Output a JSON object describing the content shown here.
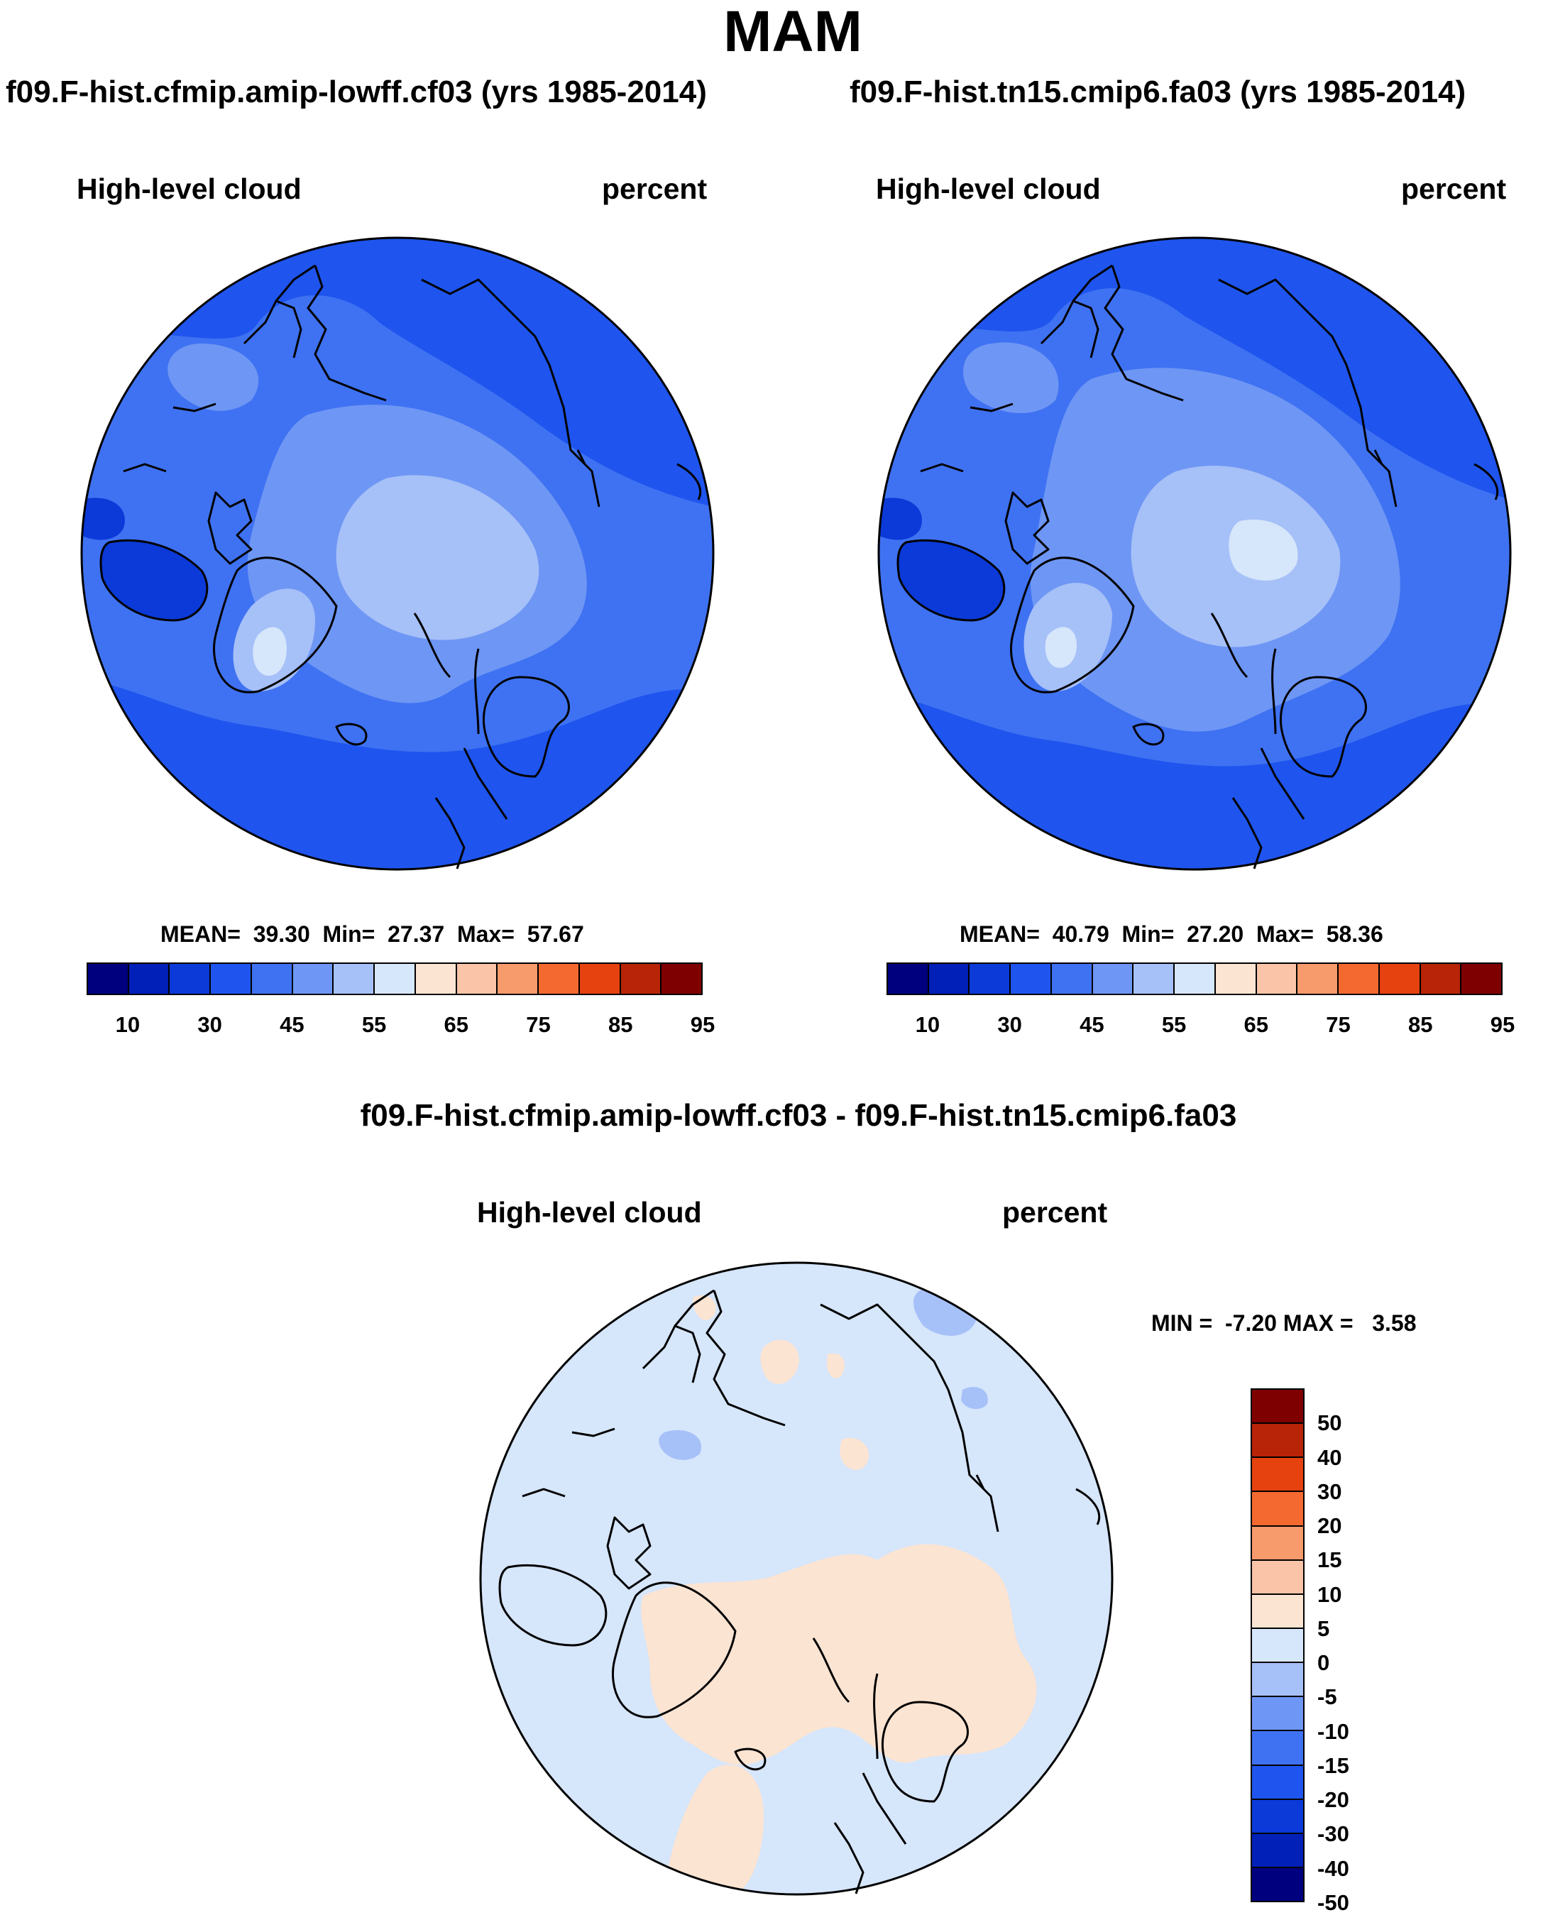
{
  "title": "MAM",
  "panels": [
    {
      "run_title": "f09.F-hist.cfmip.amip-lowff.cf03 (yrs 1985-2014)",
      "variable": "High-level cloud",
      "units": "percent",
      "mean_label": "MEAN=",
      "mean": "39.30",
      "min_label": "Min=",
      "min": "27.37",
      "max_label": "Max=",
      "max": "57.67"
    },
    {
      "run_title": "f09.F-hist.tn15.cmip6.fa03 (yrs 1985-2014)",
      "variable": "High-level cloud",
      "units": "percent",
      "mean_label": "MEAN=",
      "mean": "40.79",
      "min_label": "Min=",
      "min": "27.20",
      "max_label": "Max=",
      "max": "58.36"
    }
  ],
  "abs_colorbar": {
    "colors": [
      "#00007f",
      "#0020b8",
      "#0b3ad8",
      "#1f55ee",
      "#3f72f2",
      "#6e96f4",
      "#a6c0f8",
      "#d6e6fb",
      "#fce4d2",
      "#f9c4a7",
      "#f79a6c",
      "#f4692f",
      "#e5420f",
      "#b82407",
      "#7f0000"
    ],
    "labels": [
      "10",
      "30",
      "45",
      "55",
      "65",
      "75",
      "85",
      "95"
    ]
  },
  "difference": {
    "title": "f09.F-hist.cfmip.amip-lowff.cf03 - f09.F-hist.tn15.cmip6.fa03",
    "variable": "High-level cloud",
    "units": "percent",
    "min_label": "MIN =",
    "min": "-7.20",
    "max_label": "MAX =",
    "max": "3.58",
    "colorbar": {
      "colors": [
        "#7f0000",
        "#b82407",
        "#e5420f",
        "#f4692f",
        "#f79a6c",
        "#f9c4a7",
        "#fce4d2",
        "#d6e6fb",
        "#a6c0f8",
        "#6e96f4",
        "#3f72f2",
        "#1f55ee",
        "#0b3ad8",
        "#0020b8",
        "#00007f"
      ],
      "labels": [
        "50",
        "40",
        "30",
        "20",
        "15",
        "10",
        "5",
        "0",
        "-5",
        "-10",
        "-15",
        "-20",
        "-30",
        "-40",
        "-50"
      ]
    }
  },
  "map_colors": {
    "base": "#1f55ee",
    "mid": "#3f72f2",
    "light": "#6e96f4",
    "lighter": "#a6c0f8",
    "lightest": "#d6e6fb",
    "dark": "#0b3ad8",
    "diff_base": "#d6e6fb",
    "diff_pos": "#fce4d2",
    "diff_neg": "#a6c0f8"
  }
}
